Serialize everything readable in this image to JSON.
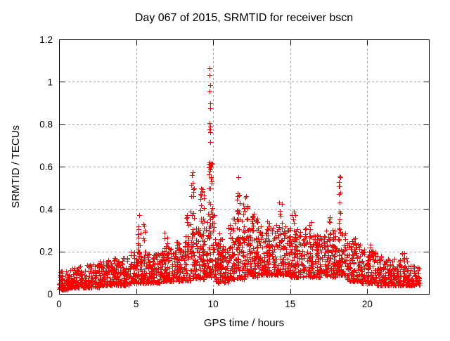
{
  "title": "Day 067 of 2015, SRMTID for receiver bscn",
  "chart_data": {
    "type": "scatter",
    "title": "Day 067 of 2015, SRMTID for receiver bscn",
    "xlabel": "GPS time / hours",
    "ylabel": "SRMTID / TECUs",
    "xlim": [
      0,
      24
    ],
    "ylim": [
      0,
      1.2
    ],
    "xticks": [
      0,
      5,
      10,
      15,
      20
    ],
    "xtick_labels": [
      "0",
      "5",
      "10",
      "15",
      "20"
    ],
    "yticks": [
      0,
      0.2,
      0.4,
      0.6,
      0.8,
      1.0,
      1.2
    ],
    "ytick_labels": [
      "0",
      "0.2",
      "0.4",
      "0.6",
      "0.8",
      "1",
      "1.2"
    ],
    "grid": true,
    "legend": "none",
    "marker": "plus",
    "marker_color": "#ff0000",
    "grid_color": "#a0a0a0",
    "border_color": "#000000",
    "x_data_range": [
      0,
      23.4
    ],
    "series_name": "SRMTID",
    "baseline_bands": [
      [
        0.0,
        0.6,
        0.02,
        0.11,
        70
      ],
      [
        0.6,
        1.6,
        0.03,
        0.13,
        110
      ],
      [
        1.6,
        2.6,
        0.03,
        0.14,
        110
      ],
      [
        2.6,
        3.6,
        0.04,
        0.16,
        110
      ],
      [
        3.6,
        4.6,
        0.04,
        0.17,
        110
      ],
      [
        4.6,
        5.6,
        0.05,
        0.2,
        115
      ],
      [
        5.6,
        6.6,
        0.05,
        0.19,
        115
      ],
      [
        6.6,
        7.6,
        0.06,
        0.22,
        115
      ],
      [
        7.6,
        8.6,
        0.06,
        0.25,
        120
      ],
      [
        8.6,
        9.5,
        0.07,
        0.32,
        115
      ],
      [
        9.5,
        10.15,
        0.08,
        0.38,
        85
      ],
      [
        10.15,
        11.0,
        0.05,
        0.26,
        110
      ],
      [
        11.0,
        12.0,
        0.07,
        0.36,
        125
      ],
      [
        12.0,
        13.0,
        0.08,
        0.36,
        125
      ],
      [
        13.0,
        14.0,
        0.09,
        0.32,
        120
      ],
      [
        14.0,
        15.0,
        0.09,
        0.33,
        120
      ],
      [
        15.0,
        16.0,
        0.08,
        0.31,
        115
      ],
      [
        16.0,
        17.0,
        0.08,
        0.28,
        115
      ],
      [
        17.0,
        18.0,
        0.08,
        0.3,
        115
      ],
      [
        18.0,
        18.6,
        0.09,
        0.3,
        70
      ],
      [
        18.6,
        19.6,
        0.06,
        0.24,
        110
      ],
      [
        19.6,
        20.6,
        0.05,
        0.22,
        110
      ],
      [
        20.6,
        21.6,
        0.04,
        0.18,
        105
      ],
      [
        21.6,
        22.6,
        0.04,
        0.17,
        105
      ],
      [
        22.6,
        23.4,
        0.04,
        0.14,
        85
      ]
    ],
    "spike_clusters": [
      [
        5.2,
        0.25,
        0.18,
        0.37,
        12
      ],
      [
        5.55,
        0.2,
        0.18,
        0.33,
        8
      ],
      [
        6.9,
        0.25,
        0.16,
        0.29,
        9
      ],
      [
        8.3,
        0.2,
        0.2,
        0.37,
        10
      ],
      [
        8.65,
        0.25,
        0.24,
        0.57,
        18
      ],
      [
        9.3,
        0.3,
        0.22,
        0.55,
        20
      ],
      [
        9.8,
        0.28,
        0.28,
        0.62,
        26
      ],
      [
        10.35,
        0.25,
        0.12,
        0.3,
        10
      ],
      [
        11.6,
        0.25,
        0.24,
        0.55,
        18
      ],
      [
        12.1,
        0.3,
        0.22,
        0.5,
        15
      ],
      [
        12.55,
        0.2,
        0.2,
        0.42,
        10
      ],
      [
        13.6,
        0.3,
        0.15,
        0.35,
        10
      ],
      [
        14.35,
        0.25,
        0.22,
        0.45,
        12
      ],
      [
        15.25,
        0.3,
        0.2,
        0.4,
        12
      ],
      [
        16.3,
        0.2,
        0.17,
        0.36,
        8
      ],
      [
        17.6,
        0.3,
        0.2,
        0.38,
        12
      ],
      [
        18.2,
        0.12,
        0.24,
        0.55,
        14
      ],
      [
        19.1,
        0.2,
        0.14,
        0.27,
        6
      ],
      [
        20.2,
        0.3,
        0.12,
        0.25,
        8
      ],
      [
        22.35,
        0.2,
        0.1,
        0.2,
        5
      ]
    ],
    "outlier_points": [
      [
        9.78,
        1.065
      ],
      [
        9.78,
        1.03
      ],
      [
        9.8,
        0.985
      ],
      [
        9.75,
        0.955
      ],
      [
        9.8,
        0.9
      ],
      [
        9.83,
        0.875
      ],
      [
        9.78,
        0.805
      ],
      [
        9.82,
        0.79
      ],
      [
        9.75,
        0.775
      ],
      [
        9.8,
        0.762
      ],
      [
        9.83,
        0.715
      ],
      [
        9.77,
        0.62
      ],
      [
        9.84,
        0.6
      ],
      [
        9.8,
        0.588
      ],
      [
        9.75,
        0.58
      ],
      [
        8.67,
        0.575
      ],
      [
        11.62,
        0.55
      ],
      [
        18.22,
        0.555
      ],
      [
        5.22,
        0.37
      ],
      [
        8.32,
        0.37
      ]
    ]
  }
}
